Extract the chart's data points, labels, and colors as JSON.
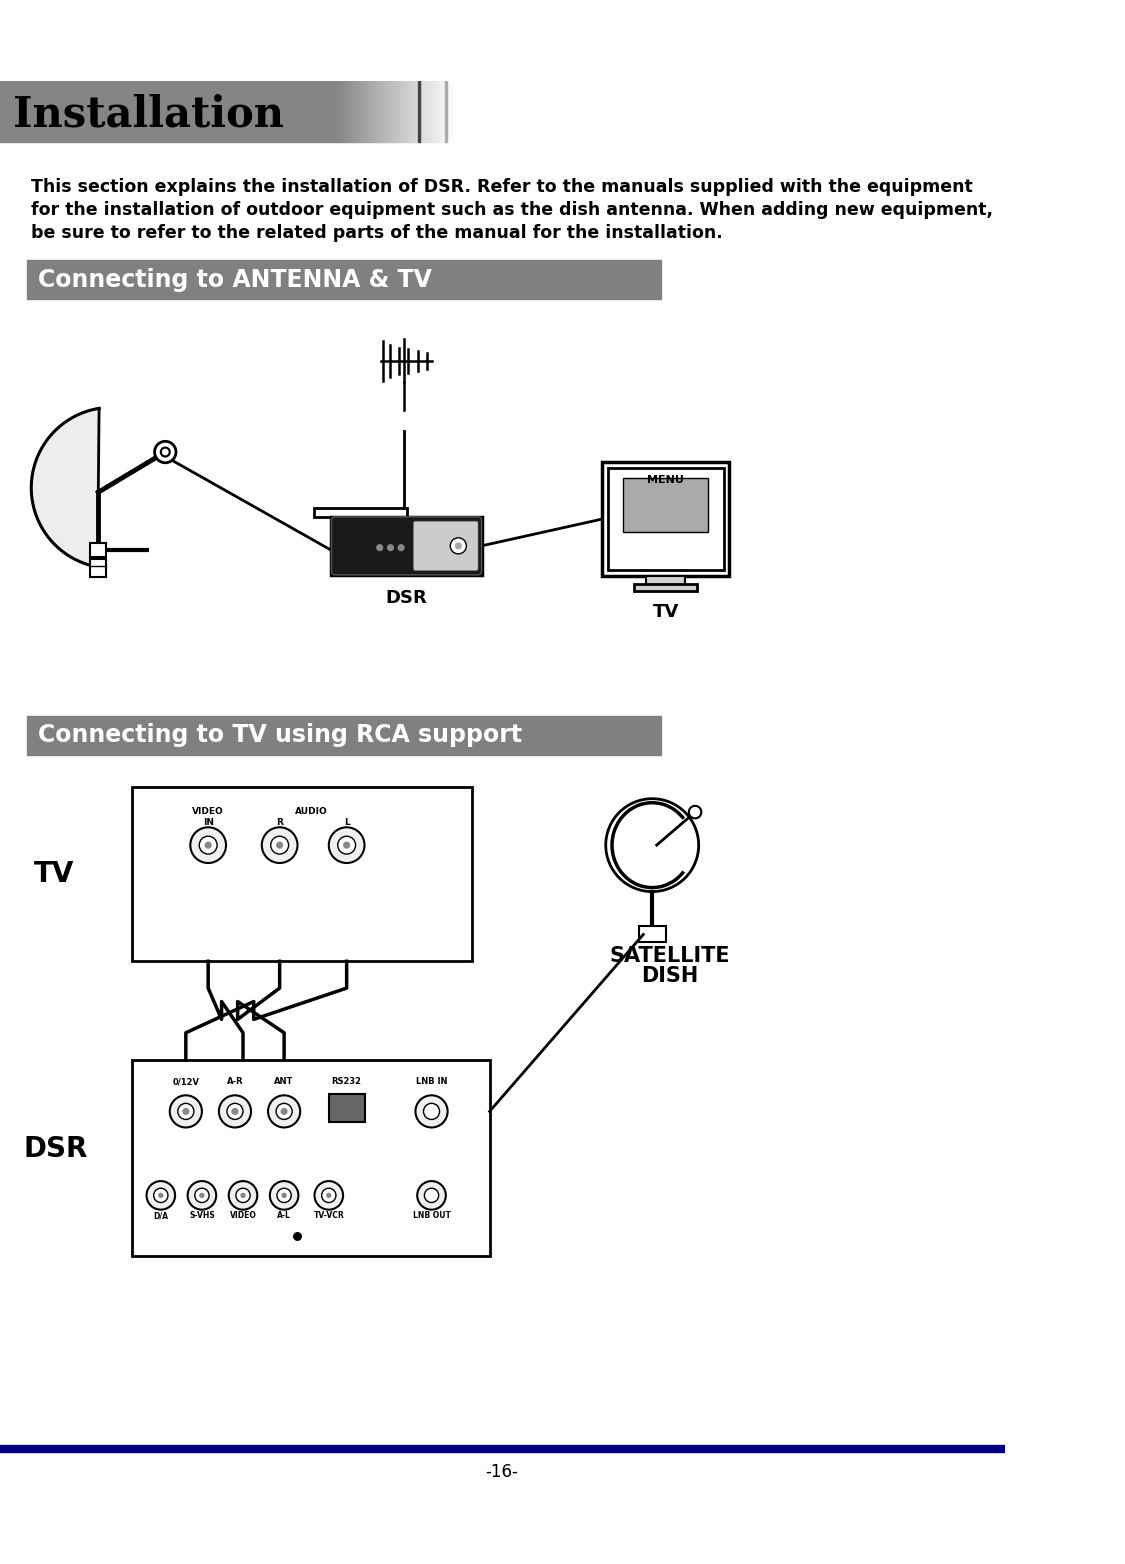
{
  "title": "Installation",
  "title_text_color": "#000000",
  "title_fontsize": 30,
  "page_bg_color": "#ffffff",
  "body_lines": [
    "This section explains the installation of DSR. Refer to the manuals supplied with the equipment",
    "for the installation of outdoor equipment such as the dish antenna. When adding new equipment,",
    "be sure to refer to the related parts of the manual for the installation."
  ],
  "body_fontsize": 12.5,
  "section1_title": "Connecting to ANTENNA & TV",
  "section1_bg": "#808080",
  "section1_text_color": "#ffffff",
  "section1_fontsize": 17,
  "section2_title": "Connecting to TV using RCA support",
  "section2_bg": "#808080",
  "section2_text_color": "#ffffff",
  "section2_fontsize": 17,
  "page_number": "-16-",
  "bottom_line_color": "#000080"
}
